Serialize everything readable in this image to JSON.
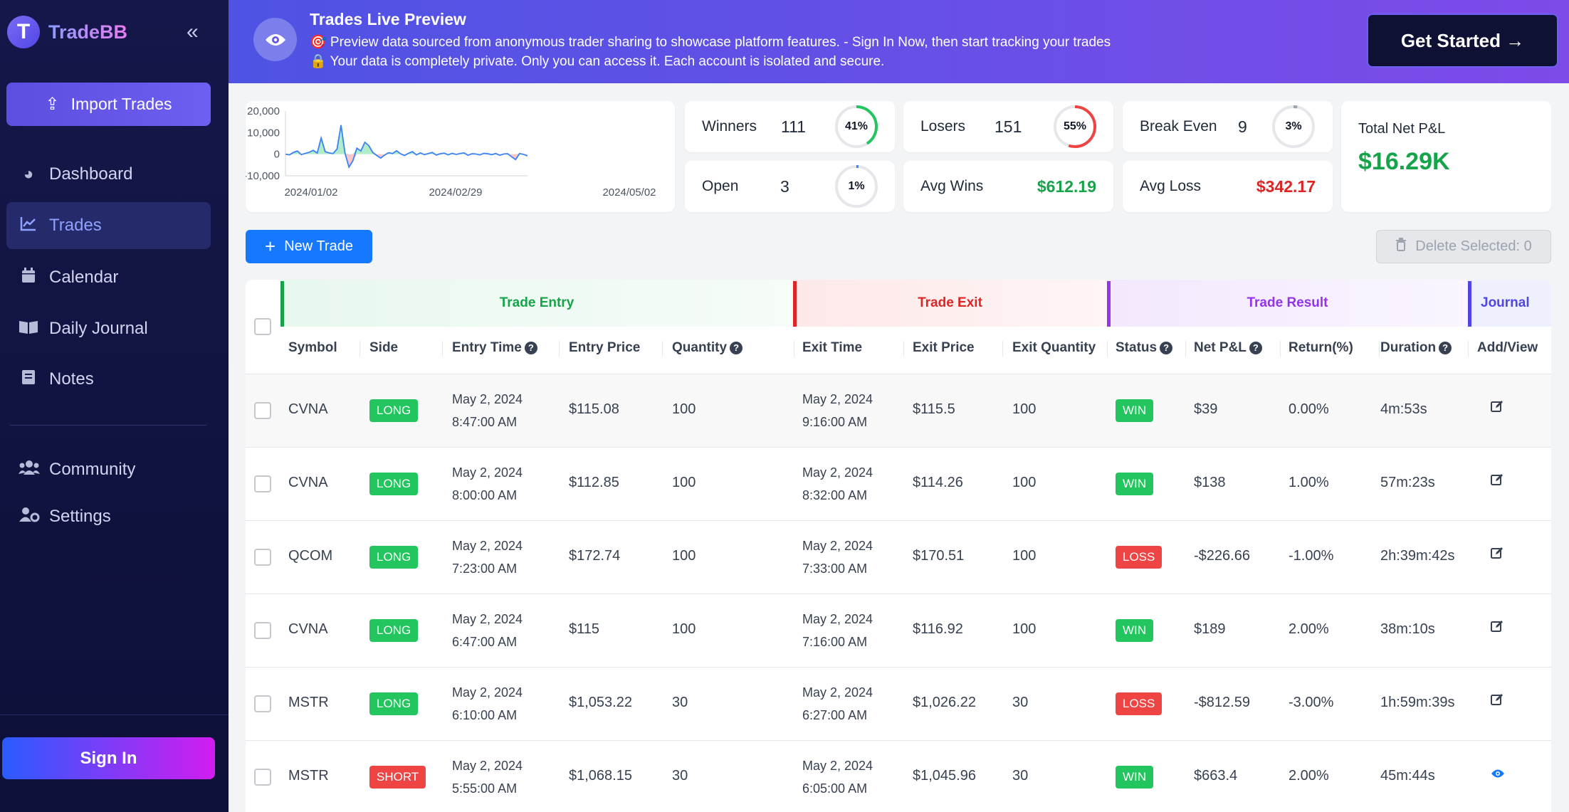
{
  "sidebar": {
    "brand_letter": "T",
    "brand_name": "TradeBB",
    "collapse_icon": "«",
    "import_label": "Import Trades",
    "nav": [
      {
        "label": "Dashboard",
        "icon": "dashboard-icon"
      },
      {
        "label": "Trades",
        "icon": "chart-line-icon"
      },
      {
        "label": "Calendar",
        "icon": "calendar-icon"
      },
      {
        "label": "Daily Journal",
        "icon": "book-icon"
      },
      {
        "label": "Notes",
        "icon": "notes-icon"
      },
      {
        "label": "Community",
        "icon": "users-icon"
      },
      {
        "label": "Settings",
        "icon": "user-gear-icon"
      }
    ],
    "signin_label": "Sign In"
  },
  "banner": {
    "title": "Trades Live Preview",
    "line1": "🎯 Preview data sourced from anonymous trader sharing to showcase platform features. - Sign In Now, then start tracking your trades",
    "line2": "🔒 Your data is completely private. Only you can access it. Each account is isolated and secure.",
    "cta": "Get Started →"
  },
  "stats": {
    "winners": {
      "label": "Winners",
      "value": "111",
      "pct": "41%",
      "fraction": 0.41,
      "color": "#22c55e"
    },
    "losers": {
      "label": "Losers",
      "value": "151",
      "pct": "55%",
      "fraction": 0.55,
      "color": "#ef4444"
    },
    "break_even": {
      "label": "Break Even",
      "value": "9",
      "pct": "3%",
      "fraction": 0.03,
      "color": "#9ca3af"
    },
    "open": {
      "label": "Open",
      "value": "3",
      "pct": "1%",
      "fraction": 0.01,
      "color": "#3b82f6"
    },
    "avg_wins": {
      "label": "Avg Wins",
      "value": "$612.19"
    },
    "avg_loss": {
      "label": "Avg Loss",
      "value": "$342.17"
    },
    "total": {
      "label": "Total Net P&L",
      "value": "$16.29K"
    }
  },
  "chart_data": {
    "type": "area",
    "y_ticks": [
      "20,000",
      "10,000",
      "0",
      "-10,000"
    ],
    "x_ticks": [
      "2024/01/02",
      "2024/02/29",
      "2024/05/02"
    ],
    "ylim": [
      -10000,
      20000
    ],
    "values": [
      0,
      -300,
      800,
      1500,
      -200,
      400,
      900,
      1800,
      500,
      7500,
      1200,
      600,
      300,
      2400,
      13500,
      500,
      -6000,
      -3000,
      2800,
      1500,
      5500,
      4000,
      800,
      -600,
      -1800,
      -400,
      700,
      300,
      1600,
      200,
      -600,
      400,
      1200,
      -300,
      600,
      -200,
      300,
      800,
      -400,
      200,
      500,
      -300,
      400,
      -100,
      300,
      600,
      -500,
      200,
      100,
      -300,
      400,
      200,
      -200,
      300,
      -500,
      100,
      200,
      -1200,
      -2500,
      300,
      -100,
      -800
    ]
  },
  "buttons": {
    "new_trade": "New Trade",
    "delete_selected": "Delete Selected: 0"
  },
  "table": {
    "groups": {
      "entry": "Trade Entry",
      "exit": "Trade Exit",
      "result": "Trade Result",
      "journal": "Journal"
    },
    "headers": {
      "symbol": "Symbol",
      "side": "Side",
      "entry_time": "Entry Time",
      "entry_price": "Entry Price",
      "quantity": "Quantity",
      "exit_time": "Exit Time",
      "exit_price": "Exit Price",
      "exit_quantity": "Exit Quantity",
      "status": "Status",
      "net_pnl": "Net P&L",
      "return": "Return(%)",
      "duration": "Duration",
      "add_view": "Add/View"
    },
    "rows": [
      {
        "symbol": "CVNA",
        "side": "LONG",
        "entry_date": "May 2, 2024",
        "entry_clock": "8:47:00 AM",
        "entry_price": "$115.08",
        "quantity": "100",
        "exit_date": "May 2, 2024",
        "exit_clock": "9:16:00 AM",
        "exit_price": "$115.5",
        "exit_quantity": "100",
        "status": "WIN",
        "net_pnl": "$39",
        "return": "0.00%",
        "duration": "4m:53s",
        "action": "edit"
      },
      {
        "symbol": "CVNA",
        "side": "LONG",
        "entry_date": "May 2, 2024",
        "entry_clock": "8:00:00 AM",
        "entry_price": "$112.85",
        "quantity": "100",
        "exit_date": "May 2, 2024",
        "exit_clock": "8:32:00 AM",
        "exit_price": "$114.26",
        "exit_quantity": "100",
        "status": "WIN",
        "net_pnl": "$138",
        "return": "1.00%",
        "duration": "57m:23s",
        "action": "edit"
      },
      {
        "symbol": "QCOM",
        "side": "LONG",
        "entry_date": "May 2, 2024",
        "entry_clock": "7:23:00 AM",
        "entry_price": "$172.74",
        "quantity": "100",
        "exit_date": "May 2, 2024",
        "exit_clock": "7:33:00 AM",
        "exit_price": "$170.51",
        "exit_quantity": "100",
        "status": "LOSS",
        "net_pnl": "-$226.66",
        "return": "-1.00%",
        "duration": "2h:39m:42s",
        "action": "edit"
      },
      {
        "symbol": "CVNA",
        "side": "LONG",
        "entry_date": "May 2, 2024",
        "entry_clock": "6:47:00 AM",
        "entry_price": "$115",
        "quantity": "100",
        "exit_date": "May 2, 2024",
        "exit_clock": "7:16:00 AM",
        "exit_price": "$116.92",
        "exit_quantity": "100",
        "status": "WIN",
        "net_pnl": "$189",
        "return": "2.00%",
        "duration": "38m:10s",
        "action": "edit"
      },
      {
        "symbol": "MSTR",
        "side": "LONG",
        "entry_date": "May 2, 2024",
        "entry_clock": "6:10:00 AM",
        "entry_price": "$1,053.22",
        "quantity": "30",
        "exit_date": "May 2, 2024",
        "exit_clock": "6:27:00 AM",
        "exit_price": "$1,026.22",
        "exit_quantity": "30",
        "status": "LOSS",
        "net_pnl": "-$812.59",
        "return": "-3.00%",
        "duration": "1h:59m:39s",
        "action": "edit"
      },
      {
        "symbol": "MSTR",
        "side": "SHORT",
        "entry_date": "May 2, 2024",
        "entry_clock": "5:55:00 AM",
        "entry_price": "$1,068.15",
        "quantity": "30",
        "exit_date": "May 2, 2024",
        "exit_clock": "6:05:00 AM",
        "exit_price": "$1,045.96",
        "exit_quantity": "30",
        "status": "WIN",
        "net_pnl": "$663.4",
        "return": "2.00%",
        "duration": "45m:44s",
        "action": "view"
      }
    ]
  }
}
